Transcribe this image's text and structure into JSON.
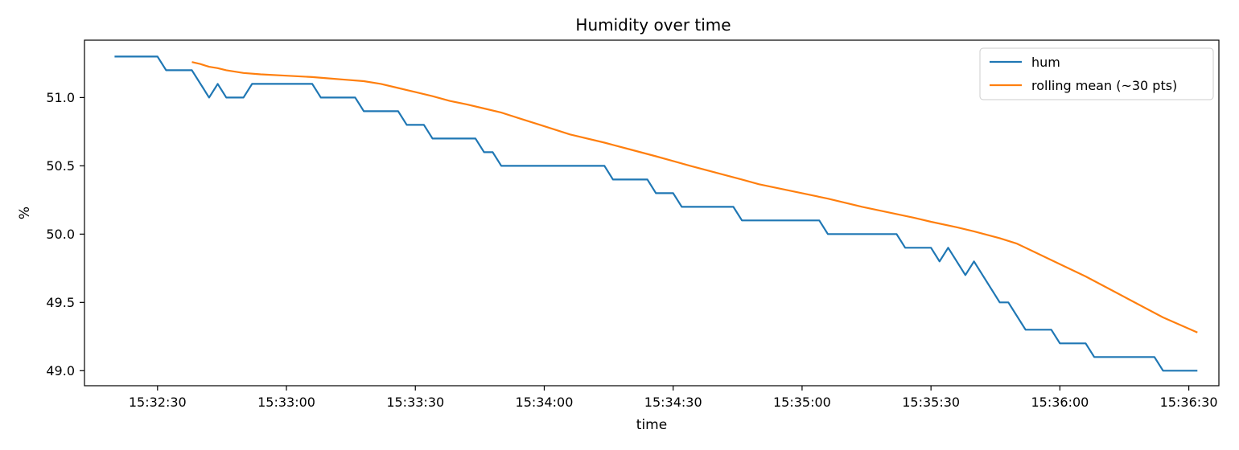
{
  "chart_data": {
    "type": "line",
    "title": "Humidity over time",
    "xlabel": "time",
    "ylabel": "%",
    "xlim": [
      "15:32:13",
      "15:36:37"
    ],
    "ylim": [
      48.89,
      51.42
    ],
    "x_ticks": [
      "15:32:30",
      "15:33:00",
      "15:33:30",
      "15:34:00",
      "15:34:30",
      "15:35:00",
      "15:35:30",
      "15:36:00",
      "15:36:30"
    ],
    "y_ticks": [
      49.0,
      49.5,
      50.0,
      50.5,
      51.0
    ],
    "legend_position": "top-right",
    "grid": false,
    "series": [
      {
        "name": "hum",
        "color": "#1f77b4",
        "points": [
          [
            "15:32:20",
            51.3
          ],
          [
            "15:32:30",
            51.3
          ],
          [
            "15:32:32",
            51.2
          ],
          [
            "15:32:38",
            51.2
          ],
          [
            "15:32:42",
            51.0
          ],
          [
            "15:32:44",
            51.1
          ],
          [
            "15:32:46",
            51.0
          ],
          [
            "15:32:50",
            51.0
          ],
          [
            "15:32:52",
            51.1
          ],
          [
            "15:33:06",
            51.1
          ],
          [
            "15:33:08",
            51.0
          ],
          [
            "15:33:16",
            51.0
          ],
          [
            "15:33:18",
            50.9
          ],
          [
            "15:33:26",
            50.9
          ],
          [
            "15:33:28",
            50.8
          ],
          [
            "15:33:32",
            50.8
          ],
          [
            "15:33:34",
            50.7
          ],
          [
            "15:33:44",
            50.7
          ],
          [
            "15:33:46",
            50.6
          ],
          [
            "15:33:48",
            50.6
          ],
          [
            "15:33:50",
            50.5
          ],
          [
            "15:34:14",
            50.5
          ],
          [
            "15:34:16",
            50.4
          ],
          [
            "15:34:24",
            50.4
          ],
          [
            "15:34:26",
            50.3
          ],
          [
            "15:34:30",
            50.3
          ],
          [
            "15:34:32",
            50.2
          ],
          [
            "15:34:44",
            50.2
          ],
          [
            "15:34:46",
            50.1
          ],
          [
            "15:35:04",
            50.1
          ],
          [
            "15:35:06",
            50.0
          ],
          [
            "15:35:22",
            50.0
          ],
          [
            "15:35:24",
            49.9
          ],
          [
            "15:35:30",
            49.9
          ],
          [
            "15:35:32",
            49.8
          ],
          [
            "15:35:34",
            49.9
          ],
          [
            "15:35:38",
            49.7
          ],
          [
            "15:35:40",
            49.8
          ],
          [
            "15:35:46",
            49.5
          ],
          [
            "15:35:48",
            49.5
          ],
          [
            "15:35:52",
            49.3
          ],
          [
            "15:35:58",
            49.3
          ],
          [
            "15:36:00",
            49.2
          ],
          [
            "15:36:06",
            49.2
          ],
          [
            "15:36:08",
            49.1
          ],
          [
            "15:36:22",
            49.1
          ],
          [
            "15:36:24",
            49.0
          ],
          [
            "15:36:32",
            49.0
          ]
        ]
      },
      {
        "name": "rolling mean (~30 pts)",
        "color": "#ff7f0e",
        "points": [
          [
            "15:32:38",
            51.26
          ],
          [
            "15:32:40",
            51.245
          ],
          [
            "15:32:42",
            51.225
          ],
          [
            "15:32:44",
            51.215
          ],
          [
            "15:32:46",
            51.2
          ],
          [
            "15:32:50",
            51.18
          ],
          [
            "15:32:54",
            51.17
          ],
          [
            "15:33:00",
            51.16
          ],
          [
            "15:33:06",
            51.15
          ],
          [
            "15:33:10",
            51.14
          ],
          [
            "15:33:14",
            51.13
          ],
          [
            "15:33:18",
            51.12
          ],
          [
            "15:33:22",
            51.1
          ],
          [
            "15:33:26",
            51.07
          ],
          [
            "15:33:30",
            51.04
          ],
          [
            "15:33:34",
            51.01
          ],
          [
            "15:33:38",
            50.975
          ],
          [
            "15:33:42",
            50.95
          ],
          [
            "15:33:46",
            50.92
          ],
          [
            "15:33:50",
            50.89
          ],
          [
            "15:33:54",
            50.85
          ],
          [
            "15:34:00",
            50.79
          ],
          [
            "15:34:06",
            50.73
          ],
          [
            "15:34:14",
            50.67
          ],
          [
            "15:34:20",
            50.62
          ],
          [
            "15:34:26",
            50.57
          ],
          [
            "15:34:30",
            50.535
          ],
          [
            "15:34:34",
            50.5
          ],
          [
            "15:34:40",
            50.45
          ],
          [
            "15:34:46",
            50.4
          ],
          [
            "15:34:50",
            50.365
          ],
          [
            "15:35:00",
            50.3
          ],
          [
            "15:35:06",
            50.26
          ],
          [
            "15:35:14",
            50.2
          ],
          [
            "15:35:20",
            50.16
          ],
          [
            "15:35:26",
            50.12
          ],
          [
            "15:35:30",
            50.09
          ],
          [
            "15:35:36",
            50.05
          ],
          [
            "15:35:40",
            50.02
          ],
          [
            "15:35:46",
            49.97
          ],
          [
            "15:35:50",
            49.93
          ],
          [
            "15:35:54",
            49.87
          ],
          [
            "15:36:00",
            49.78
          ],
          [
            "15:36:06",
            49.69
          ],
          [
            "15:36:12",
            49.59
          ],
          [
            "15:36:18",
            49.49
          ],
          [
            "15:36:24",
            49.39
          ],
          [
            "15:36:32",
            49.28
          ]
        ]
      }
    ]
  }
}
